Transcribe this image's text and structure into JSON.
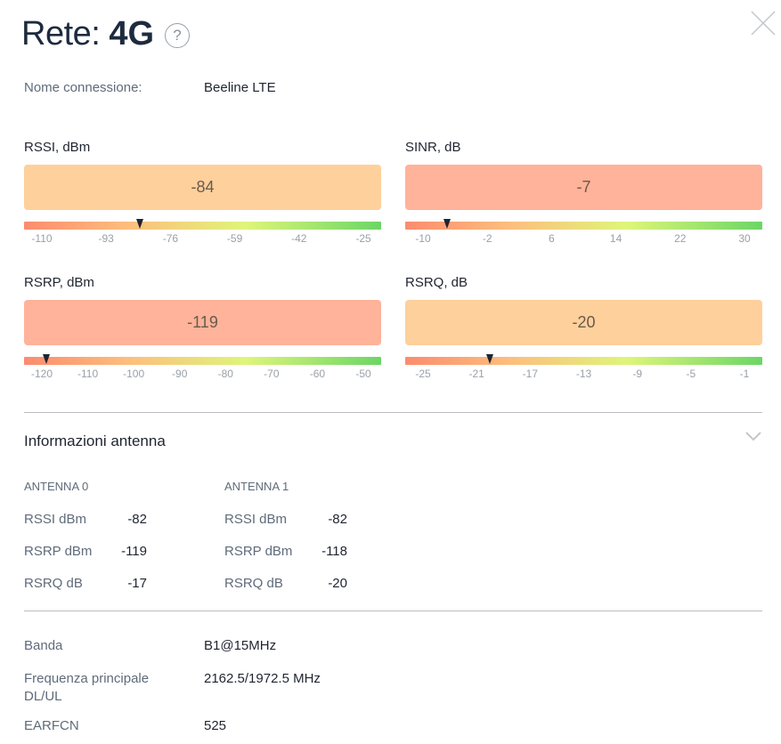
{
  "header": {
    "title_prefix": "Rete:",
    "title_value": "4G",
    "help_symbol": "?"
  },
  "connection": {
    "label": "Nome connessione:",
    "value": "Beeline LTE"
  },
  "metrics": {
    "rssi": {
      "label": "RSSI, dBm",
      "value": "-84",
      "min": -110,
      "max": -25,
      "reading": -84,
      "ticks": [
        "-110",
        "-93",
        "-76",
        "-59",
        "-42",
        "-25"
      ],
      "box_color": "#fed09c"
    },
    "sinr": {
      "label": "SINR, dB",
      "value": "-7",
      "min": -10,
      "max": 30,
      "reading": -7,
      "ticks": [
        "-10",
        "-2",
        "6",
        "14",
        "22",
        "30"
      ],
      "box_color": "#feb39a"
    },
    "rsrp": {
      "label": "RSRP, dBm",
      "value": "-119",
      "min": -120,
      "max": -50,
      "reading": -119,
      "ticks": [
        "-120",
        "-110",
        "-100",
        "-90",
        "-80",
        "-70",
        "-60",
        "-50"
      ],
      "box_color": "#feb39a"
    },
    "rsrq": {
      "label": "RSRQ, dB",
      "value": "-20",
      "min": -25,
      "max": -1,
      "reading": -20,
      "ticks": [
        "-25",
        "-21",
        "-17",
        "-13",
        "-9",
        "-5",
        "-1"
      ],
      "box_color": "#fed09c"
    }
  },
  "antenna_section": {
    "title": "Informazioni antenna",
    "antenna0": {
      "title": "ANTENNA 0",
      "rows": [
        {
          "label": "RSSI dBm",
          "value": "-82"
        },
        {
          "label": "RSRP dBm",
          "value": "-119"
        },
        {
          "label": "RSRQ dB",
          "value": "-17"
        }
      ]
    },
    "antenna1": {
      "title": "ANTENNA 1",
      "rows": [
        {
          "label": "RSSI dBm",
          "value": "-82"
        },
        {
          "label": "RSRP dBm",
          "value": "-118"
        },
        {
          "label": "RSRQ dB",
          "value": "-20"
        }
      ]
    }
  },
  "details": [
    {
      "label": "Banda",
      "value": "B1@15MHz"
    },
    {
      "label": "Frequenza principale DL/UL",
      "value": "2162.5/1972.5 MHz"
    },
    {
      "label": "EARFCN",
      "value": "525"
    }
  ],
  "colors": {
    "scale_red": "#fb8c6e",
    "scale_orange": "#fdbf7d",
    "scale_yellow": "#dff57a",
    "scale_green": "#6bd665"
  },
  "icons": {
    "close": "close-icon",
    "help": "help-icon",
    "chevron": "chevron-down-icon"
  }
}
